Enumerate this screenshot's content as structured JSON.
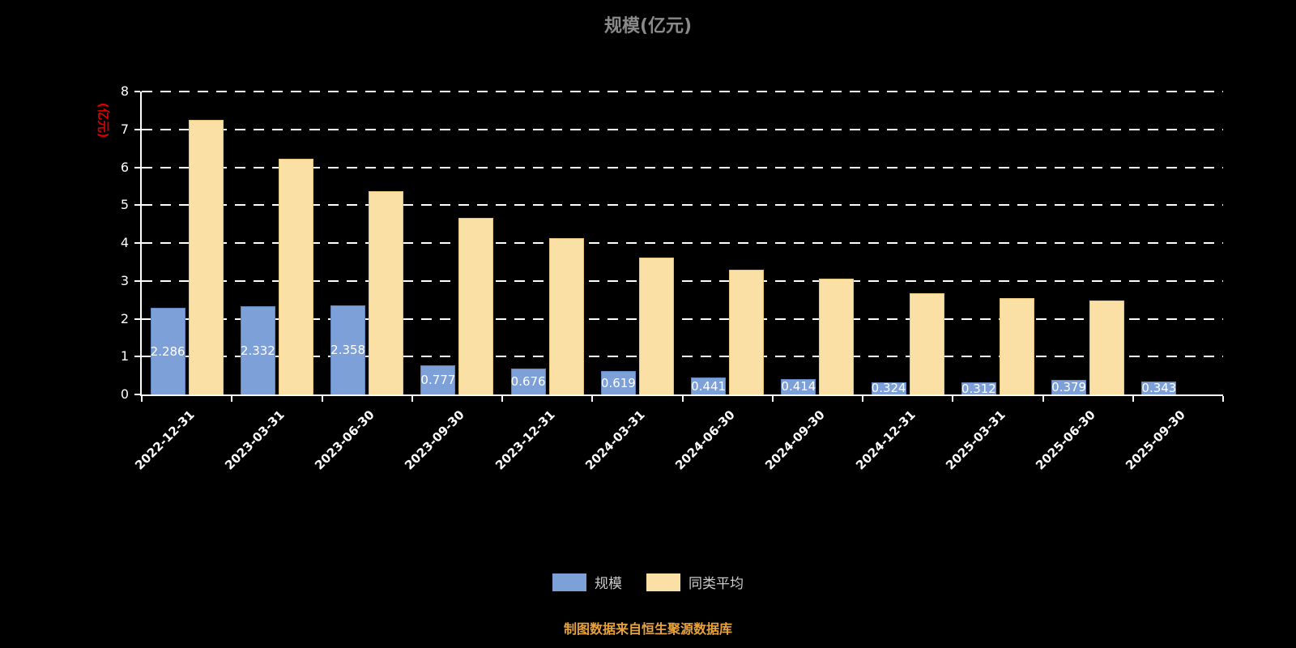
{
  "chart": {
    "title": "规模(亿元)",
    "y_axis_title": "(亿元)",
    "source_note": "制图数据来自恒生聚源数据库",
    "legend": [
      {
        "label": "规模",
        "color": "#7ea0d8"
      },
      {
        "label": "同类平均",
        "color": "#fae0a4"
      }
    ]
  },
  "chart_data": {
    "type": "bar",
    "title": "规模(亿元)",
    "ylabel": "(亿元)",
    "ylim": [
      0,
      8
    ],
    "ytick_step": 1,
    "grid": "horizontal-dashed",
    "legend_position": "bottom",
    "background": "#000000",
    "categories": [
      "2022-12-31",
      "2023-03-31",
      "2023-06-30",
      "2023-09-30",
      "2023-12-31",
      "2024-03-31",
      "2024-06-30",
      "2024-09-30",
      "2024-12-31",
      "2025-03-31",
      "2025-06-30",
      "2025-09-30"
    ],
    "series": [
      {
        "name": "规模",
        "color": "#7ea0d8",
        "values": [
          2.286,
          2.332,
          2.358,
          0.777,
          0.676,
          0.619,
          0.441,
          0.414,
          0.324,
          0.312,
          0.379,
          0.343
        ],
        "labels": [
          "2.286",
          "2.332",
          "2.358",
          "0.777",
          "0.676",
          "0.619",
          "0.441",
          "0.414",
          "0.324",
          "0.312",
          "0.379",
          "0.343"
        ]
      },
      {
        "name": "同类平均",
        "color": "#fae0a4",
        "values": [
          7.25,
          6.22,
          5.37,
          4.67,
          4.13,
          3.62,
          3.29,
          3.06,
          2.68,
          2.55,
          2.48,
          null
        ]
      }
    ]
  }
}
